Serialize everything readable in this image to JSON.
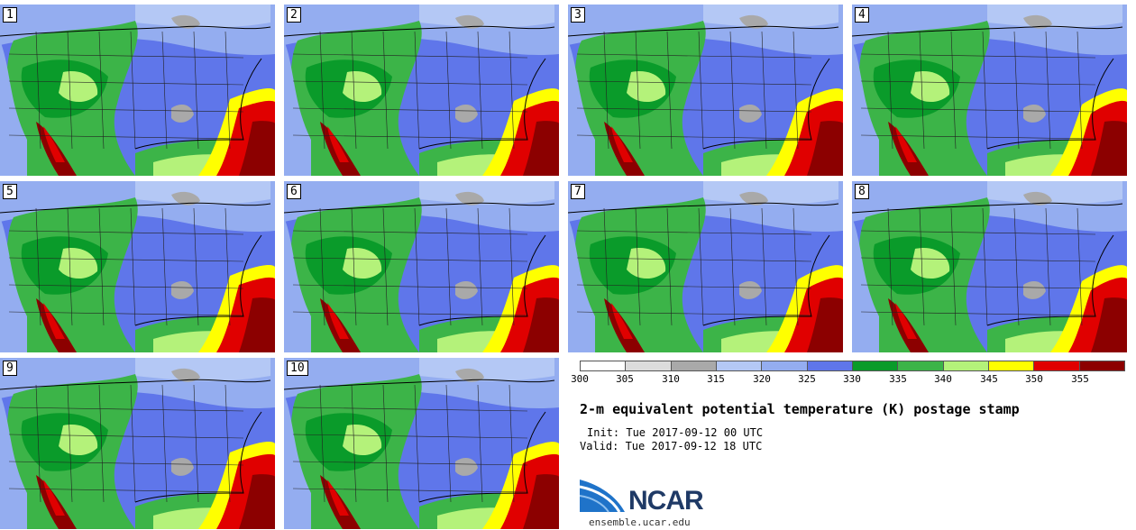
{
  "panels": [
    "1",
    "2",
    "3",
    "4",
    "5",
    "6",
    "7",
    "8",
    "9",
    "10"
  ],
  "colors": {
    "c300": "#ffffff",
    "c305": "#dcdcdc",
    "c310": "#a9a9a9",
    "c315": "#b4c8f5",
    "c320": "#94adf0",
    "c325": "#5f76ea",
    "c330": "#0a9b2a",
    "c335": "#3cb448",
    "c340": "#b4f27a",
    "c345": "#ffff00",
    "c350": "#e00000",
    "c355": "#8c0000"
  },
  "legend": {
    "ticks": [
      "300",
      "305",
      "310",
      "315",
      "320",
      "325",
      "330",
      "335",
      "340",
      "345",
      "350",
      "355"
    ],
    "swatches": [
      "#ffffff",
      "#dcdcdc",
      "#a9a9a9",
      "#b4c8f5",
      "#94adf0",
      "#5f76ea",
      "#0a9b2a",
      "#3cb448",
      "#b4f27a",
      "#ffff00",
      "#e00000",
      "#8c0000"
    ]
  },
  "title": "2-m equivalent potential temperature (K) postage stamp",
  "init": "Init: Tue 2017-09-12 00 UTC",
  "valid": "Valid: Tue 2017-09-12 18 UTC",
  "logo_text": "NCAR",
  "site": "ensemble.ucar.edu"
}
